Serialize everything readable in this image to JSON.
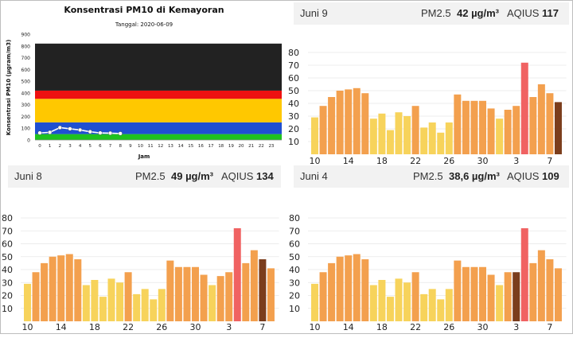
{
  "chart_data": [
    {
      "id": "pm10",
      "type": "line",
      "title": "Konsentrasi PM10 di Kemayoran",
      "subtitle": "Tanggal: 2020-06-09",
      "xlabel": "Jam",
      "ylabel": "Konsentrasi PM10 (µgram/m3)",
      "ylim": [
        0,
        900
      ],
      "yticks": [
        "0",
        "100",
        "200",
        "300",
        "400",
        "500",
        "600",
        "700",
        "800",
        "900"
      ],
      "xticks": [
        "0",
        "1",
        "2",
        "3",
        "4",
        "5",
        "6",
        "7",
        "8",
        "9",
        "10",
        "11",
        "12",
        "13",
        "14",
        "15",
        "16",
        "17",
        "18",
        "19",
        "20",
        "21",
        "22",
        "23"
      ],
      "bands": [
        {
          "from": 0,
          "to": 50,
          "color": "#1ec21e"
        },
        {
          "from": 50,
          "to": 150,
          "color": "#1f4fd1"
        },
        {
          "from": 150,
          "to": 350,
          "color": "#ffc800"
        },
        {
          "from": 350,
          "to": 420,
          "color": "#ee1111"
        },
        {
          "from": 420,
          "to": 820,
          "color": "#222222"
        }
      ],
      "x": [
        0,
        1,
        2,
        3,
        4,
        5,
        6,
        7,
        8
      ],
      "values": [
        60,
        65,
        105,
        95,
        85,
        70,
        60,
        58,
        55
      ],
      "grid": false
    },
    {
      "id": "juni9",
      "type": "bar",
      "header": {
        "day": "Juni 9",
        "metric": "PM2.5",
        "conc": "42 µg/m³",
        "aqi_label": "AQIUS",
        "aqi": "117"
      },
      "ylim": [
        0,
        80
      ],
      "yticks": [
        "10",
        "20",
        "30",
        "40",
        "50",
        "60",
        "70",
        "80"
      ],
      "xticks": [
        "10",
        "14",
        "18",
        "22",
        "26",
        "30",
        "3",
        "7"
      ],
      "values": [
        29,
        38,
        45,
        50,
        51,
        52,
        48,
        28,
        32,
        19,
        33,
        30,
        38,
        21,
        25,
        17,
        25,
        47,
        42,
        42,
        42,
        36,
        28,
        35,
        38,
        72,
        45,
        55,
        48,
        41
      ],
      "grid": true
    },
    {
      "id": "juni8",
      "type": "bar",
      "header": {
        "day": "Juni 8",
        "metric": "PM2.5",
        "conc": "49 µg/m³",
        "aqi_label": "AQIUS",
        "aqi": "134"
      },
      "ylim": [
        0,
        80
      ],
      "yticks": [
        "10",
        "20",
        "30",
        "40",
        "50",
        "60",
        "70",
        "80"
      ],
      "xticks": [
        "10",
        "14",
        "18",
        "22",
        "26",
        "30",
        "3",
        "7"
      ],
      "values": [
        29,
        38,
        45,
        50,
        51,
        52,
        48,
        28,
        32,
        19,
        33,
        30,
        38,
        21,
        25,
        17,
        25,
        47,
        42,
        42,
        42,
        36,
        28,
        35,
        38,
        72,
        45,
        55,
        48,
        41
      ],
      "grid": true
    },
    {
      "id": "juni4",
      "type": "bar",
      "header": {
        "day": "Juni 4",
        "metric": "PM2.5",
        "conc": "38,6 µg/m³",
        "aqi_label": "AQIUS",
        "aqi": "109"
      },
      "ylim": [
        0,
        80
      ],
      "yticks": [
        "10",
        "20",
        "30",
        "40",
        "50",
        "60",
        "70",
        "80"
      ],
      "xticks": [
        "10",
        "14",
        "18",
        "22",
        "26",
        "30",
        "3",
        "7"
      ],
      "values": [
        29,
        38,
        45,
        50,
        51,
        52,
        48,
        28,
        32,
        19,
        33,
        30,
        38,
        21,
        25,
        17,
        25,
        47,
        42,
        42,
        42,
        36,
        28,
        38,
        38,
        72,
        45,
        55,
        48,
        41
      ],
      "grid": true
    }
  ]
}
